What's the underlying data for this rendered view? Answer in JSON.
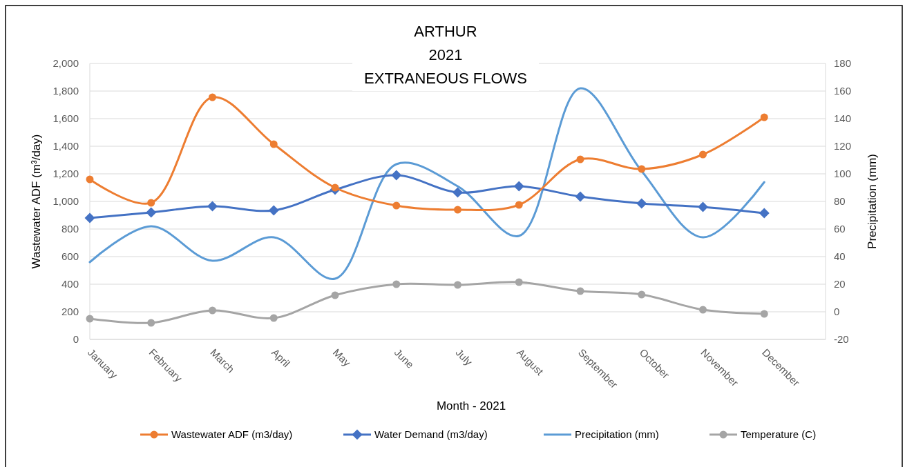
{
  "chart_data": {
    "type": "line",
    "title": "ARTHUR\n2021\nEXTRANEOUS FLOWS",
    "xlabel": "Month - 2021",
    "ylabel": "Wastewater ADF (m³/day)",
    "y2label": "Precipitation (mm)",
    "categories": [
      "January",
      "February",
      "March",
      "April",
      "May",
      "June",
      "July",
      "August",
      "September",
      "October",
      "November",
      "December"
    ],
    "ylim": [
      0,
      2000
    ],
    "yticks": [
      {
        "value": 0,
        "label": "0"
      },
      {
        "value": 200,
        "label": "200"
      },
      {
        "value": 400,
        "label": "400"
      },
      {
        "value": 600,
        "label": "600"
      },
      {
        "value": 800,
        "label": "800"
      },
      {
        "value": 1000,
        "label": "1,000"
      },
      {
        "value": 1200,
        "label": "1,200"
      },
      {
        "value": 1400,
        "label": "1,400"
      },
      {
        "value": 1600,
        "label": "1,600"
      },
      {
        "value": 1800,
        "label": "1,800"
      },
      {
        "value": 2000,
        "label": "2,000"
      }
    ],
    "y2lim": [
      -20,
      180
    ],
    "y2ticks": [
      -20,
      0,
      20,
      40,
      60,
      80,
      100,
      120,
      140,
      160,
      180
    ],
    "grid": "y",
    "legend": "bottom",
    "series": [
      {
        "name": "Wastewater ADF (m3/day)",
        "color": "#ed7d31",
        "marker": "circle",
        "values": [
          1160,
          990,
          1755,
          1415,
          1100,
          970,
          940,
          975,
          1305,
          1235,
          1340,
          1610
        ]
      },
      {
        "name": "Water Demand (m3/day)",
        "color": "#4472c4",
        "marker": "diamond",
        "values": [
          880,
          920,
          965,
          935,
          1085,
          1190,
          1065,
          1110,
          1035,
          985,
          960,
          915
        ]
      },
      {
        "name": "Precipitation (mm)",
        "color": "#5b9bd5",
        "marker": "none",
        "axis": "y2",
        "values": [
          36,
          62,
          37,
          54,
          24,
          107,
          91,
          55,
          162,
          102,
          54,
          94
        ]
      },
      {
        "name": "Temperature (C)",
        "color": "#a5a5a5",
        "marker": "circle",
        "axis": "y2",
        "values": [
          -5,
          -8,
          1,
          -4.5,
          12,
          20,
          19.5,
          21.5,
          15,
          12.5,
          1.5,
          -1.5
        ]
      }
    ]
  }
}
